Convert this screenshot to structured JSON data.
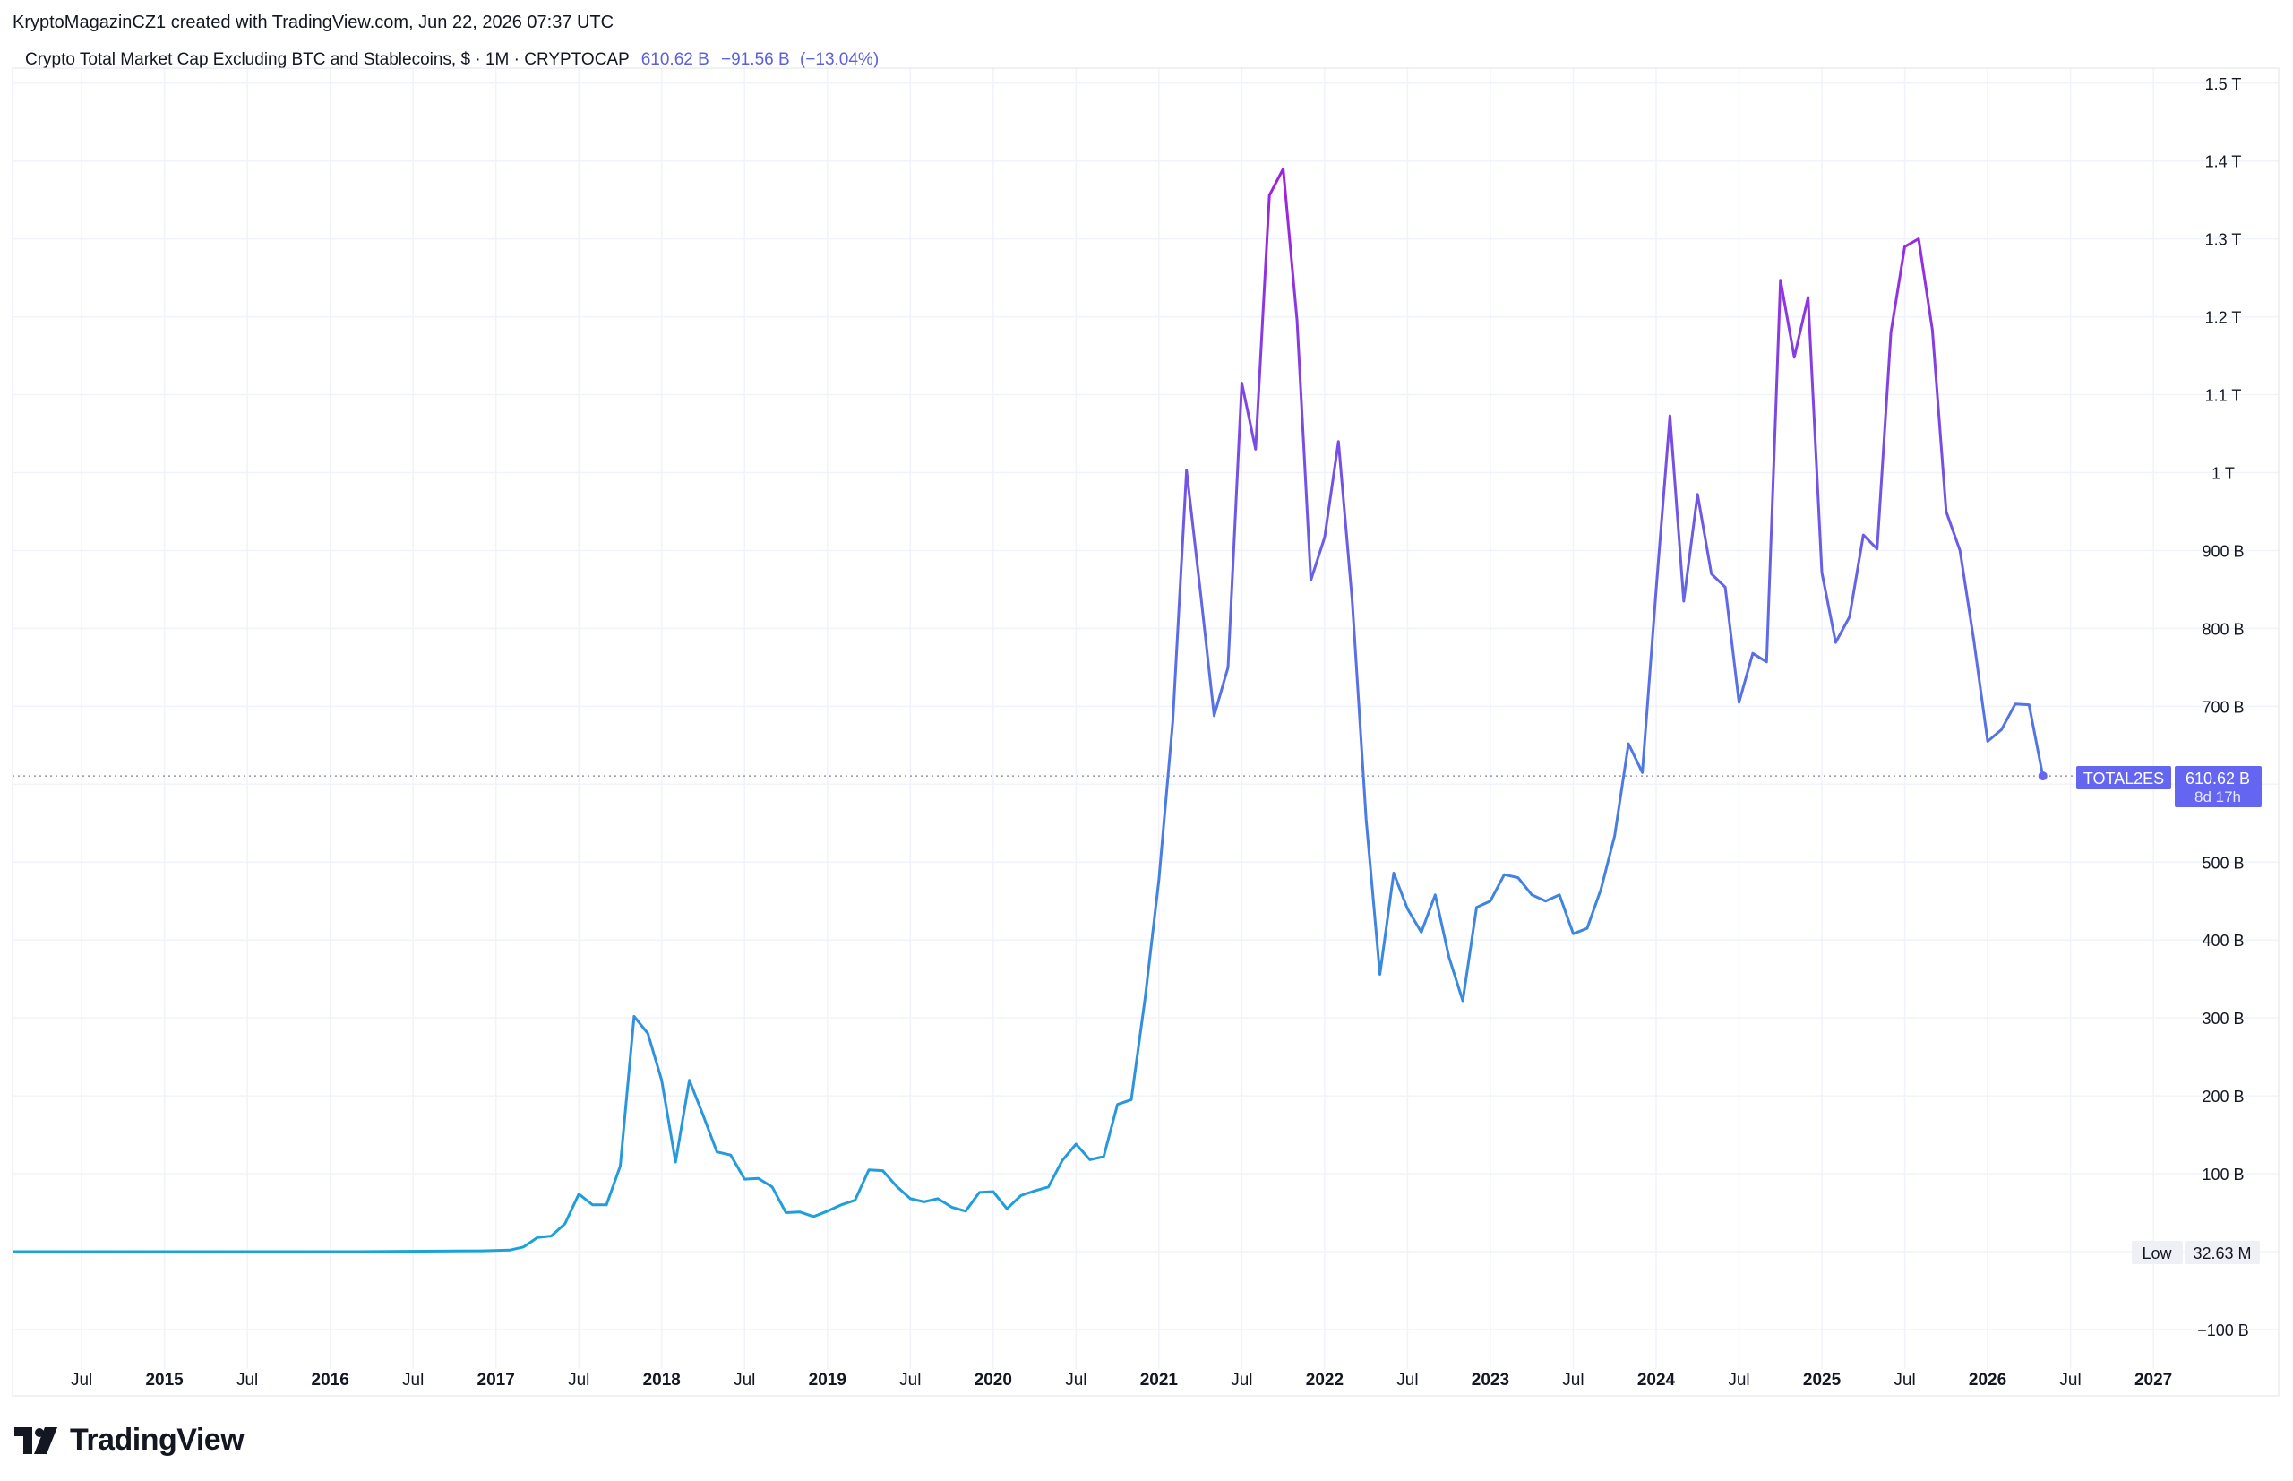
{
  "header": {
    "credit": "KryptoMagazinCZ1 created with TradingView.com, Jun 22, 2026 07:37 UTC"
  },
  "legend": {
    "symbol_text": "Crypto Total Market Cap Excluding BTC and Stablecoins, $ · 1M · CRYPTOCAP",
    "last": "610.62 B",
    "change": "−91.56 B",
    "change_pct": "(−13.04%)",
    "color": "#5b5fe0"
  },
  "footer": {
    "brand": "TradingView",
    "logo_icon": "tradingview-logo-icon"
  },
  "price_tag": {
    "ticker": "TOTAL2ES",
    "value": "610.62 B",
    "countdown": "8d 17h",
    "color": "#6466f1"
  },
  "low_tag": {
    "label": "Low",
    "value": "32.63 M"
  },
  "chart_data": {
    "type": "line",
    "title": "Crypto Total Market Cap Excluding BTC and Stablecoins, $ · 1M · CRYPTOCAP",
    "unit": "USD billions",
    "ylim": [
      -120,
      1530
    ],
    "y_ticks": [
      {
        "v": 1500,
        "t": "1.5 T"
      },
      {
        "v": 1400,
        "t": "1.4 T"
      },
      {
        "v": 1300,
        "t": "1.3 T"
      },
      {
        "v": 1200,
        "t": "1.2 T"
      },
      {
        "v": 1100,
        "t": "1.1 T"
      },
      {
        "v": 1000,
        "t": "1 T"
      },
      {
        "v": 900,
        "t": "900 B"
      },
      {
        "v": 800,
        "t": "800 B"
      },
      {
        "v": 700,
        "t": "700 B"
      },
      {
        "v": 500,
        "t": "500 B"
      },
      {
        "v": 400,
        "t": "400 B"
      },
      {
        "v": 300,
        "t": "300 B"
      },
      {
        "v": 200,
        "t": "200 B"
      },
      {
        "v": 100,
        "t": "100 B"
      },
      {
        "v": -100,
        "t": "−100 B"
      }
    ],
    "x_ticks": [
      {
        "d": "2014-07",
        "t": "Jul",
        "bold": false
      },
      {
        "d": "2015-01",
        "t": "2015",
        "bold": true
      },
      {
        "d": "2015-07",
        "t": "Jul",
        "bold": false
      },
      {
        "d": "2016-01",
        "t": "2016",
        "bold": true
      },
      {
        "d": "2016-07",
        "t": "Jul",
        "bold": false
      },
      {
        "d": "2017-01",
        "t": "2017",
        "bold": true
      },
      {
        "d": "2017-07",
        "t": "Jul",
        "bold": false
      },
      {
        "d": "2018-01",
        "t": "2018",
        "bold": true
      },
      {
        "d": "2018-07",
        "t": "Jul",
        "bold": false
      },
      {
        "d": "2019-01",
        "t": "2019",
        "bold": true
      },
      {
        "d": "2019-07",
        "t": "Jul",
        "bold": false
      },
      {
        "d": "2020-01",
        "t": "2020",
        "bold": true
      },
      {
        "d": "2020-07",
        "t": "Jul",
        "bold": false
      },
      {
        "d": "2021-01",
        "t": "2021",
        "bold": true
      },
      {
        "d": "2021-07",
        "t": "Jul",
        "bold": false
      },
      {
        "d": "2022-01",
        "t": "2022",
        "bold": true
      },
      {
        "d": "2022-07",
        "t": "Jul",
        "bold": false
      },
      {
        "d": "2023-01",
        "t": "2023",
        "bold": true
      },
      {
        "d": "2023-07",
        "t": "Jul",
        "bold": false
      },
      {
        "d": "2024-01",
        "t": "2024",
        "bold": true
      },
      {
        "d": "2024-07",
        "t": "Jul",
        "bold": false
      },
      {
        "d": "2025-01",
        "t": "2025",
        "bold": true
      },
      {
        "d": "2025-07",
        "t": "Jul",
        "bold": false
      },
      {
        "d": "2026-01",
        "t": "2026",
        "bold": true
      },
      {
        "d": "2026-07",
        "t": "Jul",
        "bold": false
      },
      {
        "d": "2027-01",
        "t": "2027",
        "bold": true
      }
    ],
    "grid": true,
    "line_gradient": [
      "#1aa3d9",
      "#5b6ee8",
      "#a11fe0"
    ],
    "points": [
      {
        "d": "2014-02",
        "v": 0
      },
      {
        "d": "2016-03",
        "v": 0
      },
      {
        "d": "2016-12",
        "v": 1
      },
      {
        "d": "2017-02",
        "v": 2
      },
      {
        "d": "2017-03",
        "v": 6
      },
      {
        "d": "2017-04",
        "v": 18
      },
      {
        "d": "2017-05",
        "v": 20
      },
      {
        "d": "2017-06",
        "v": 36
      },
      {
        "d": "2017-07",
        "v": 74
      },
      {
        "d": "2017-08",
        "v": 60
      },
      {
        "d": "2017-09",
        "v": 60
      },
      {
        "d": "2017-10",
        "v": 110
      },
      {
        "d": "2017-11",
        "v": 302
      },
      {
        "d": "2017-12",
        "v": 280
      },
      {
        "d": "2018-01",
        "v": 220
      },
      {
        "d": "2018-02",
        "v": 115
      },
      {
        "d": "2018-03",
        "v": 220
      },
      {
        "d": "2018-04",
        "v": 175
      },
      {
        "d": "2018-05",
        "v": 128
      },
      {
        "d": "2018-06",
        "v": 124
      },
      {
        "d": "2018-07",
        "v": 93
      },
      {
        "d": "2018-08",
        "v": 94
      },
      {
        "d": "2018-09",
        "v": 83
      },
      {
        "d": "2018-10",
        "v": 50
      },
      {
        "d": "2018-11",
        "v": 51
      },
      {
        "d": "2018-12",
        "v": 45
      },
      {
        "d": "2019-01",
        "v": 52
      },
      {
        "d": "2019-02",
        "v": 60
      },
      {
        "d": "2019-03",
        "v": 66
      },
      {
        "d": "2019-04",
        "v": 105
      },
      {
        "d": "2019-05",
        "v": 104
      },
      {
        "d": "2019-06",
        "v": 84
      },
      {
        "d": "2019-07",
        "v": 68
      },
      {
        "d": "2019-08",
        "v": 64
      },
      {
        "d": "2019-09",
        "v": 68
      },
      {
        "d": "2019-10",
        "v": 57
      },
      {
        "d": "2019-11",
        "v": 52
      },
      {
        "d": "2019-12",
        "v": 76
      },
      {
        "d": "2020-01",
        "v": 77
      },
      {
        "d": "2020-02",
        "v": 55
      },
      {
        "d": "2020-03",
        "v": 72
      },
      {
        "d": "2020-04",
        "v": 78
      },
      {
        "d": "2020-05",
        "v": 83
      },
      {
        "d": "2020-06",
        "v": 117
      },
      {
        "d": "2020-07",
        "v": 138
      },
      {
        "d": "2020-08",
        "v": 118
      },
      {
        "d": "2020-09",
        "v": 122
      },
      {
        "d": "2020-10",
        "v": 189
      },
      {
        "d": "2020-11",
        "v": 195
      },
      {
        "d": "2020-12",
        "v": 325
      },
      {
        "d": "2021-01",
        "v": 478
      },
      {
        "d": "2021-02",
        "v": 680
      },
      {
        "d": "2021-03",
        "v": 1003
      },
      {
        "d": "2021-04",
        "v": 848
      },
      {
        "d": "2021-05",
        "v": 688
      },
      {
        "d": "2021-06",
        "v": 750
      },
      {
        "d": "2021-07",
        "v": 1115
      },
      {
        "d": "2021-08",
        "v": 1030
      },
      {
        "d": "2021-09",
        "v": 1356
      },
      {
        "d": "2021-10",
        "v": 1390
      },
      {
        "d": "2021-11",
        "v": 1195
      },
      {
        "d": "2021-12",
        "v": 862
      },
      {
        "d": "2022-01",
        "v": 917
      },
      {
        "d": "2022-02",
        "v": 1040
      },
      {
        "d": "2022-03",
        "v": 835
      },
      {
        "d": "2022-04",
        "v": 555
      },
      {
        "d": "2022-05",
        "v": 356
      },
      {
        "d": "2022-06",
        "v": 486
      },
      {
        "d": "2022-07",
        "v": 440
      },
      {
        "d": "2022-08",
        "v": 410
      },
      {
        "d": "2022-09",
        "v": 458
      },
      {
        "d": "2022-10",
        "v": 378
      },
      {
        "d": "2022-11",
        "v": 322
      },
      {
        "d": "2022-12",
        "v": 442
      },
      {
        "d": "2023-01",
        "v": 450
      },
      {
        "d": "2023-02",
        "v": 484
      },
      {
        "d": "2023-03",
        "v": 480
      },
      {
        "d": "2023-04",
        "v": 458
      },
      {
        "d": "2023-05",
        "v": 450
      },
      {
        "d": "2023-06",
        "v": 458
      },
      {
        "d": "2023-07",
        "v": 408
      },
      {
        "d": "2023-08",
        "v": 415
      },
      {
        "d": "2023-09",
        "v": 465
      },
      {
        "d": "2023-10",
        "v": 534
      },
      {
        "d": "2023-11",
        "v": 652
      },
      {
        "d": "2023-12",
        "v": 615
      },
      {
        "d": "2024-01",
        "v": 850
      },
      {
        "d": "2024-02",
        "v": 1073
      },
      {
        "d": "2024-03",
        "v": 835
      },
      {
        "d": "2024-04",
        "v": 972
      },
      {
        "d": "2024-05",
        "v": 870
      },
      {
        "d": "2024-06",
        "v": 853
      },
      {
        "d": "2024-07",
        "v": 705
      },
      {
        "d": "2024-08",
        "v": 768
      },
      {
        "d": "2024-09",
        "v": 757
      },
      {
        "d": "2024-10",
        "v": 1247
      },
      {
        "d": "2024-11",
        "v": 1148
      },
      {
        "d": "2024-12",
        "v": 1225
      },
      {
        "d": "2025-01",
        "v": 872
      },
      {
        "d": "2025-02",
        "v": 782
      },
      {
        "d": "2025-03",
        "v": 815
      },
      {
        "d": "2025-04",
        "v": 920
      },
      {
        "d": "2025-05",
        "v": 902
      },
      {
        "d": "2025-06",
        "v": 1180
      },
      {
        "d": "2025-07",
        "v": 1290
      },
      {
        "d": "2025-08",
        "v": 1300
      },
      {
        "d": "2025-09",
        "v": 1183
      },
      {
        "d": "2025-10",
        "v": 950
      },
      {
        "d": "2025-11",
        "v": 900
      },
      {
        "d": "2025-12",
        "v": 785
      },
      {
        "d": "2026-01",
        "v": 655
      },
      {
        "d": "2026-02",
        "v": 670
      },
      {
        "d": "2026-03",
        "v": 703
      },
      {
        "d": "2026-04",
        "v": 702
      },
      {
        "d": "2026-05",
        "v": 610.62
      }
    ],
    "last_value": 610.62,
    "low_value": 0.03263
  }
}
